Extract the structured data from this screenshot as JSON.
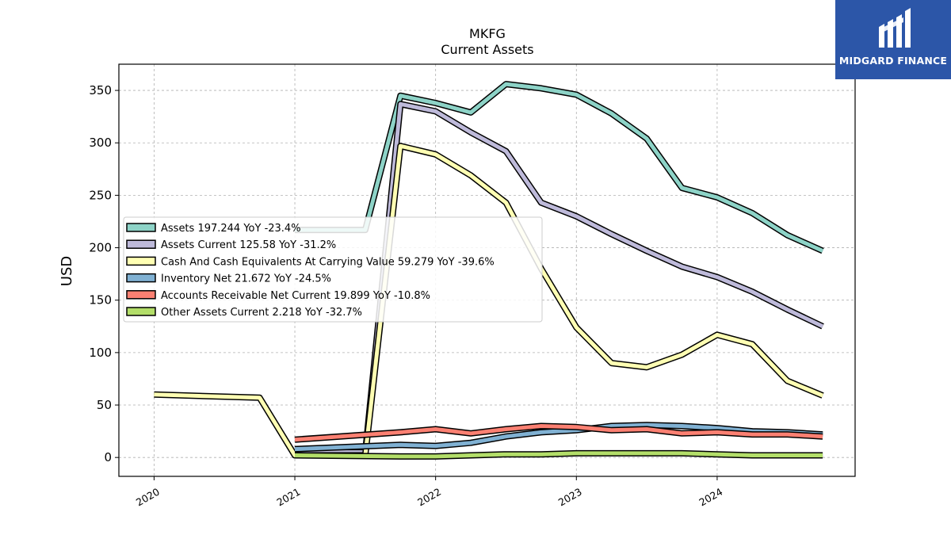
{
  "chart_data": {
    "type": "line",
    "title": "MKFG",
    "subtitle": "Current  Assets",
    "xlabel": "",
    "ylabel": "USD",
    "ylim": [
      -18,
      375
    ],
    "xlim": [
      2019.75,
      2024.98
    ],
    "yticks": [
      0,
      50,
      100,
      150,
      200,
      250,
      300,
      350
    ],
    "xticks": [
      {
        "x": 2020,
        "label": "2020"
      },
      {
        "x": 2021,
        "label": "2021"
      },
      {
        "x": 2022,
        "label": "2022"
      },
      {
        "x": 2023,
        "label": "2023"
      },
      {
        "x": 2024,
        "label": "2024"
      }
    ],
    "grid": true,
    "legend": "center-left",
    "series": [
      {
        "name": "Assets  197.244 YoY -23.4%",
        "color": "#8dd3c7",
        "points": [
          [
            2021.0,
            217
          ],
          [
            2021.5,
            217
          ],
          [
            2021.75,
            345
          ],
          [
            2022.0,
            338
          ],
          [
            2022.25,
            329
          ],
          [
            2022.5,
            356
          ],
          [
            2022.75,
            352
          ],
          [
            2023.0,
            346
          ],
          [
            2023.25,
            328
          ],
          [
            2023.5,
            304
          ],
          [
            2023.75,
            257
          ],
          [
            2024.0,
            248
          ],
          [
            2024.25,
            233
          ],
          [
            2024.5,
            212
          ],
          [
            2024.75,
            197
          ]
        ]
      },
      {
        "name": "Assets Current  125.58 YoY -31.2%",
        "color": "#bebada",
        "points": [
          [
            2021.0,
            5
          ],
          [
            2021.5,
            5
          ],
          [
            2021.75,
            337
          ],
          [
            2022.0,
            330
          ],
          [
            2022.25,
            310
          ],
          [
            2022.5,
            292
          ],
          [
            2022.75,
            243
          ],
          [
            2023.0,
            230
          ],
          [
            2023.25,
            213
          ],
          [
            2023.5,
            197
          ],
          [
            2023.75,
            182
          ],
          [
            2024.0,
            172
          ],
          [
            2024.25,
            158
          ],
          [
            2024.5,
            141
          ],
          [
            2024.75,
            125
          ]
        ]
      },
      {
        "name": "Cash And Cash Equivalents At Carrying Value  59.279 YoY -39.6%",
        "color": "#ffffb3",
        "points": [
          [
            2020.0,
            60
          ],
          [
            2020.75,
            57
          ],
          [
            2021.0,
            2
          ],
          [
            2021.5,
            2
          ],
          [
            2021.75,
            297
          ],
          [
            2022.0,
            289
          ],
          [
            2022.25,
            269
          ],
          [
            2022.5,
            243
          ],
          [
            2022.75,
            180
          ],
          [
            2023.0,
            124
          ],
          [
            2023.25,
            90
          ],
          [
            2023.5,
            86
          ],
          [
            2023.75,
            98
          ],
          [
            2024.0,
            117
          ],
          [
            2024.25,
            108
          ],
          [
            2024.5,
            73
          ],
          [
            2024.75,
            59
          ]
        ]
      },
      {
        "name": "Inventory Net  21.672 YoY -24.5%",
        "color": "#80b1d3",
        "points": [
          [
            2021.0,
            8
          ],
          [
            2021.75,
            12
          ],
          [
            2022.0,
            11
          ],
          [
            2022.25,
            14
          ],
          [
            2022.5,
            20
          ],
          [
            2022.75,
            24
          ],
          [
            2023.0,
            26
          ],
          [
            2023.25,
            30
          ],
          [
            2023.5,
            31
          ],
          [
            2023.75,
            30
          ],
          [
            2024.0,
            28
          ],
          [
            2024.25,
            25
          ],
          [
            2024.5,
            24
          ],
          [
            2024.75,
            22
          ]
        ]
      },
      {
        "name": "Accounts Receivable Net Current  19.899 YoY -10.8%",
        "color": "#fb8072",
        "points": [
          [
            2021.0,
            17
          ],
          [
            2021.75,
            24
          ],
          [
            2022.0,
            27
          ],
          [
            2022.25,
            23
          ],
          [
            2022.5,
            27
          ],
          [
            2022.75,
            30
          ],
          [
            2023.0,
            29
          ],
          [
            2023.25,
            26
          ],
          [
            2023.5,
            27
          ],
          [
            2023.75,
            23
          ],
          [
            2024.0,
            24
          ],
          [
            2024.25,
            22
          ],
          [
            2024.5,
            22
          ],
          [
            2024.75,
            20
          ]
        ]
      },
      {
        "name": "Other Assets Current  2.218 YoY -32.7%",
        "color": "#b3de69",
        "points": [
          [
            2021.0,
            2
          ],
          [
            2021.75,
            1
          ],
          [
            2022.0,
            1
          ],
          [
            2022.25,
            2
          ],
          [
            2022.5,
            3
          ],
          [
            2022.75,
            3
          ],
          [
            2023.0,
            4
          ],
          [
            2023.25,
            4
          ],
          [
            2023.5,
            4
          ],
          [
            2023.75,
            4
          ],
          [
            2024.0,
            3
          ],
          [
            2024.25,
            2
          ],
          [
            2024.5,
            2
          ],
          [
            2024.75,
            2
          ]
        ]
      }
    ]
  },
  "logo": {
    "text": "MIDGARD FINANCE",
    "bg_color": "#2c56a8"
  }
}
